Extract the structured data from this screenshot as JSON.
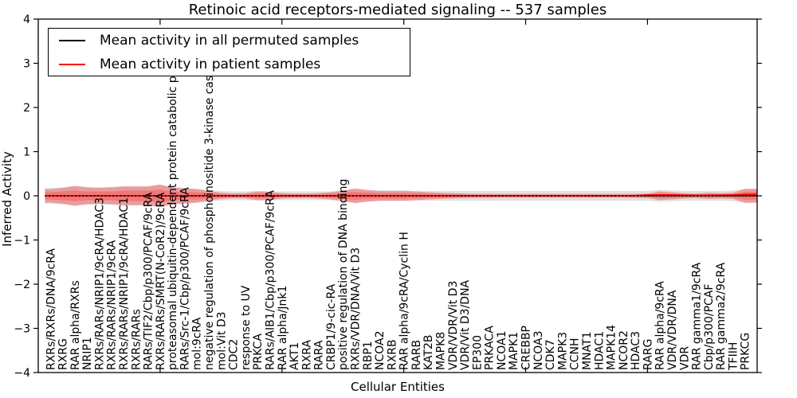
{
  "chart_data": {
    "type": "line",
    "title": "Retinoic acid receptors-mediated signaling -- 537 samples",
    "xlabel": "Cellular Entities",
    "ylabel": "Inferred Activity",
    "ylim": [
      -4,
      4
    ],
    "xlim": [
      0,
      59
    ],
    "yticks": [
      {
        "v": 4,
        "label": "4"
      },
      {
        "v": 3,
        "label": "3"
      },
      {
        "v": 2,
        "label": "2"
      },
      {
        "v": 1,
        "label": "1"
      },
      {
        "v": 0,
        "label": "0"
      },
      {
        "v": -1,
        "label": "−1"
      },
      {
        "v": -2,
        "label": "−2"
      },
      {
        "v": -3,
        "label": "−3"
      },
      {
        "v": -4,
        "label": "−4"
      }
    ],
    "xticks": [
      10,
      20,
      30,
      40,
      50
    ],
    "grid": false,
    "legend": {
      "position": "upper left",
      "entries": [
        {
          "label": "Mean activity in all permuted samples",
          "color": "#000000"
        },
        {
          "label": "Mean activity in patient samples",
          "color": "#ff0000"
        }
      ]
    },
    "categories": [
      "RXRs/RXRs/DNA/9cRA",
      "RXRG",
      "RAR alpha/RXRs",
      "NRIP1",
      "RXRs/RARs/NRIP1/9cRA/HDAC3",
      "RXRs/RARs/NRIP1/9cRA",
      "RXRs/RARs/NRIP1/9cRA/HDAC1",
      "RXRs/RARs",
      "RARs/TIF2/Cbp/p300/PCAF/9cRA",
      "RXRs/RARs/SMRT(N-CoR2)/9cRA",
      "proteasomal ubiquitin-dependent protein catabolic pr",
      "RARs/Src-1/Cbp/p300/PCAF/9cRA",
      "mol:9cRA",
      "negative regulation of phosphoinositide 3-kinase casc",
      "mol:Vit D3",
      "CDC2",
      "response to UV",
      "PRKCA",
      "RARs/AIB1/Cbp/p300/PCAF/9cRA",
      "RAR alpha/Jnk1",
      "AKT1",
      "RXRA",
      "RARA",
      "CRBP1/9-cic-RA",
      "positive regulation of DNA binding",
      "RXRs/VDR/DNA/Vit D3",
      "RBP1",
      "NCOA2",
      "RXRB",
      "RAR alpha/9cRA/Cyclin H",
      "RARB",
      "KAT2B",
      "MAPK8",
      "VDR/VDR/Vit D3",
      "VDR/Vit D3/DNA",
      "EP300",
      "PRKACA",
      "NCOA1",
      "MAPK1",
      "CREBBP",
      "NCOA3",
      "CDK7",
      "MAPK3",
      "CCNH",
      "MNAT1",
      "HDAC1",
      "MAPK14",
      "NCOR2",
      "HDAC3",
      "RARG",
      "RAR alpha/9cRA",
      "VDR/VDR/DNA",
      "VDR",
      "RAR gamma1/9cRA",
      "Cbp/p300/PCAF",
      "RAR gamma2/9cRA",
      "TFIIH",
      "PRKCG"
    ],
    "series": [
      {
        "name": "Mean activity in all permuted samples",
        "color": "#000000",
        "linestyle": "solid",
        "width": 1.2,
        "values": [
          0,
          0,
          0,
          0,
          0,
          0,
          0,
          0,
          0,
          0,
          0,
          0,
          0,
          0,
          0,
          0,
          0,
          0,
          0,
          0,
          0,
          0,
          0,
          0,
          0,
          0,
          0,
          0,
          0,
          0,
          0,
          0,
          0,
          0,
          0,
          0,
          0,
          0,
          0,
          0,
          0,
          0,
          0,
          0,
          0,
          0,
          0,
          0,
          0,
          0,
          0,
          0,
          0,
          0,
          0,
          0,
          0,
          0
        ]
      },
      {
        "name": "Mean activity in patient samples",
        "color": "#ff0000",
        "linestyle": "solid",
        "width": 1.8,
        "values": [
          0,
          0,
          0,
          0,
          0,
          0,
          0,
          0,
          0,
          0,
          0,
          0,
          0,
          0,
          0,
          0,
          0,
          0,
          0,
          0,
          0,
          0,
          0,
          0,
          0,
          0,
          0,
          0,
          0,
          0,
          0,
          0,
          0,
          0,
          0,
          0,
          0,
          0,
          0,
          0,
          0,
          0,
          0,
          0,
          0,
          0,
          0,
          0,
          0,
          0.02,
          0.02,
          0.02,
          0.015,
          0.01,
          0.01,
          0.015,
          0.02,
          0.03
        ]
      },
      {
        "name": "zero baseline",
        "color": "#000000",
        "linestyle": "dotted",
        "width": 1.6,
        "values": [
          0,
          0,
          0,
          0,
          0,
          0,
          0,
          0,
          0,
          0,
          0,
          0,
          0,
          0,
          0,
          0,
          0,
          0,
          0,
          0,
          0,
          0,
          0,
          0,
          0,
          0,
          0,
          0,
          0,
          0,
          0,
          0,
          0,
          0,
          0,
          0,
          0,
          0,
          0,
          0,
          0,
          0,
          0,
          0,
          0,
          0,
          0,
          0,
          0,
          0,
          0,
          0,
          0,
          0,
          0,
          0,
          0,
          0
        ]
      }
    ],
    "bands": [
      {
        "name": "permuted samples band",
        "color": "rgba(0,0,0,0.12)",
        "center": 0,
        "halfwidths": [
          0.18,
          0.19,
          0.23,
          0.2,
          0.19,
          0.2,
          0.22,
          0.22,
          0.22,
          0.26,
          0.2,
          0.18,
          0.16,
          0.13,
          0.11,
          0.1,
          0.1,
          0.11,
          0.1,
          0.1,
          0.1,
          0.1,
          0.1,
          0.1,
          0.12,
          0.15,
          0.13,
          0.12,
          0.12,
          0.12,
          0.11,
          0.11,
          0.11,
          0.11,
          0.11,
          0.11,
          0.11,
          0.11,
          0.11,
          0.11,
          0.11,
          0.11,
          0.11,
          0.11,
          0.11,
          0.11,
          0.11,
          0.11,
          0.11,
          0.11,
          0.13,
          0.12,
          0.11,
          0.11,
          0.11,
          0.11,
          0.12,
          0.15
        ]
      },
      {
        "name": "patient samples band",
        "color": "rgba(255,0,0,0.30)",
        "center": 0,
        "halfwidths": [
          0.15,
          0.18,
          0.22,
          0.19,
          0.18,
          0.19,
          0.21,
          0.21,
          0.21,
          0.25,
          0.19,
          0.17,
          0.15,
          0.11,
          0.07,
          0.055,
          0.06,
          0.1,
          0.09,
          0.06,
          0.05,
          0.05,
          0.06,
          0.08,
          0.12,
          0.17,
          0.13,
          0.11,
          0.11,
          0.11,
          0.1,
          0.08,
          0.07,
          0.06,
          0.05,
          0.045,
          0.045,
          0.04,
          0.04,
          0.04,
          0.04,
          0.04,
          0.04,
          0.04,
          0.04,
          0.04,
          0.04,
          0.04,
          0.045,
          0.05,
          0.1,
          0.08,
          0.06,
          0.05,
          0.07,
          0.06,
          0.07,
          0.16
        ]
      },
      {
        "name": "patient samples inner band",
        "color": "rgba(255,0,0,0.22)",
        "center": 0,
        "halfwidths": [
          0.08,
          0.1,
          0.12,
          0.1,
          0.1,
          0.1,
          0.12,
          0.12,
          0.12,
          0.14,
          0.1,
          0.09,
          0.08,
          0.06,
          0.04,
          0.03,
          0.03,
          0.055,
          0.05,
          0.03,
          0.03,
          0.03,
          0.03,
          0.045,
          0.065,
          0.09,
          0.07,
          0.06,
          0.06,
          0.06,
          0.055,
          0.045,
          0.04,
          0.03,
          0.03,
          0.025,
          0.025,
          0.022,
          0.022,
          0.022,
          0.022,
          0.022,
          0.022,
          0.022,
          0.022,
          0.022,
          0.022,
          0.022,
          0.025,
          0.03,
          0.055,
          0.045,
          0.03,
          0.03,
          0.04,
          0.03,
          0.04,
          0.09
        ]
      }
    ]
  }
}
